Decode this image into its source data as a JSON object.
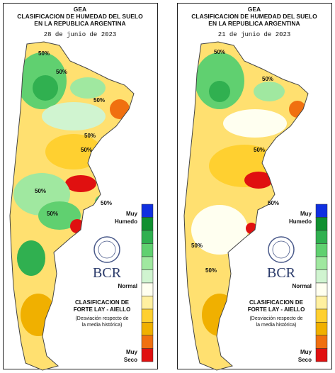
{
  "panels": [
    {
      "header": [
        "GEA",
        "CLASIFICACION DE HUMEDAD DEL SUELO",
        "EN LA REPUBLICA ARGENTINA"
      ],
      "date": "28 de junio de 2023",
      "legend_top": [
        "Muy",
        "Humedo"
      ],
      "legend_mid": "Normal",
      "legend_bottom": [
        "Muy",
        "Seco"
      ],
      "brand": "BCR",
      "classification": [
        "CLASIFICACION DE",
        "FORTE LAY - AIELLO"
      ],
      "note": [
        "(Desviación respecto de",
        "la media histórica)"
      ],
      "contour_labels": [
        "50%",
        "50%",
        "50%",
        "50%",
        "50%",
        "50%",
        "50%",
        "50%"
      ],
      "legend_colors": [
        "#1030e0",
        "#109030",
        "#30b050",
        "#60d070",
        "#a0e8a0",
        "#d0f4d0",
        "#fffff0",
        "#fff0a0",
        "#ffd030",
        "#f0b000",
        "#f07010",
        "#e01010"
      ]
    },
    {
      "header": [
        "GEA",
        "CLASIFICACION DE HUMEDAD DEL SUELO",
        "EN LA REPUBLICA ARGENTINA"
      ],
      "date": "21 de junio de 2023",
      "legend_top": [
        "Muy",
        "Humedo"
      ],
      "legend_mid": "Normal",
      "legend_bottom": [
        "Muy",
        "Seco"
      ],
      "brand": "BCR",
      "classification": [
        "CLASIFICACION DE",
        "FORTE LAY - AIELLO"
      ],
      "note": [
        "(Desviación respecto de",
        "la media histórica)"
      ],
      "contour_labels": [
        "50%",
        "50%",
        "50%",
        "50%",
        "50%",
        "50%"
      ],
      "legend_colors": [
        "#1030e0",
        "#109030",
        "#30b050",
        "#60d070",
        "#a0e8a0",
        "#d0f4d0",
        "#fffff0",
        "#fff0a0",
        "#ffd030",
        "#f0b000",
        "#f07010",
        "#e01010"
      ]
    }
  ]
}
